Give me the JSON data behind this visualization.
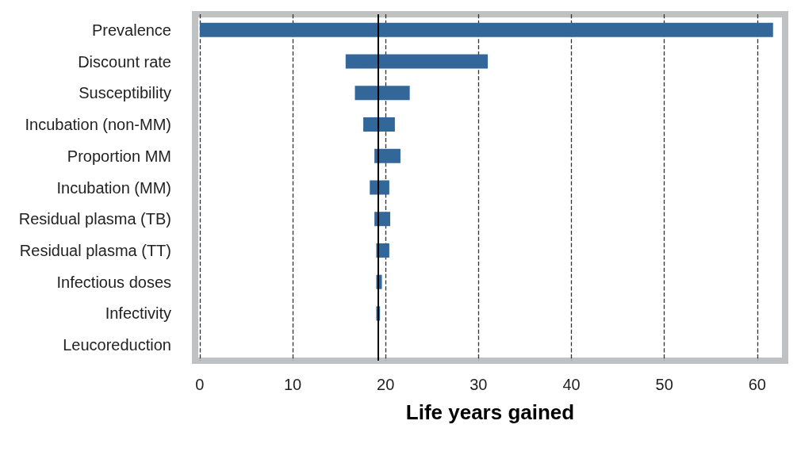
{
  "chart_data": {
    "type": "bar",
    "orientation": "horizontal",
    "xlabel": "Life years gained",
    "categories": [
      "Prevalence",
      "Discount rate",
      "Susceptibility",
      "Incubation (non-MM)",
      "Proportion MM",
      "Incubation (MM)",
      "Residual plasma (TB)",
      "Residual plasma (TT)",
      "Infectious doses",
      "Infectivity",
      "Leucoreduction"
    ],
    "base": [
      0,
      15.7,
      16.7,
      17.6,
      18.8,
      18.3,
      18.8,
      19.0,
      19.0,
      19.0,
      null
    ],
    "values": [
      61.7,
      15.3,
      5.9,
      3.4,
      2.8,
      2.1,
      1.7,
      1.4,
      0.6,
      0.4,
      null
    ],
    "color": "#33679a",
    "xlim": [
      -0.5,
      63
    ],
    "xticks": [
      0,
      10,
      20,
      30,
      40,
      50,
      60
    ],
    "grid": "x",
    "ref_lines": [
      {
        "axis": "x",
        "value": 19.2,
        "color": "#000000"
      }
    ]
  }
}
